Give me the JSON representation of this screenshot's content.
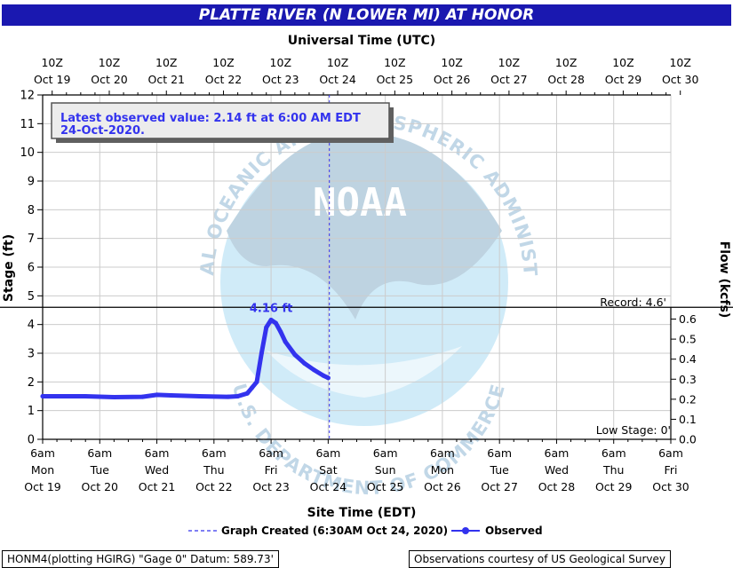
{
  "title": "PLATTE RIVER (N LOWER MI) AT HONOR",
  "top_axis_title": "Universal Time (UTC)",
  "bottom_axis_title": "Site Time (EDT)",
  "y_left_label": "Stage (ft)",
  "y_right_label": "Flow (kcfs)",
  "callout": {
    "line1": "Latest observed value: 2.14 ft at 6:00 AM EDT",
    "line2": "24-Oct-2020."
  },
  "record_label": "Record: 4.6'",
  "low_stage_label": "Low Stage: 0'",
  "peak_label": "4.16 ft",
  "legend": {
    "created": "Graph Created (6:30AM Oct 24, 2020)",
    "observed": "Observed"
  },
  "footer": {
    "left": "HONM4(plotting HGIRG) \"Gage 0\" Datum: 589.73'",
    "right": "Observations courtesy of US Geological Survey"
  },
  "watermark": {
    "top_text": "NATIONAL OCEANIC AND ATMOSPHERIC ADMINISTRATION",
    "bottom_text": "U.S. DEPARTMENT OF COMMERCE",
    "logo_text": "NOAA"
  },
  "colors": {
    "title_bg": "#1a18b0",
    "series": "#3333ee",
    "callout_text": "#3333ee",
    "grid": "#cccccc",
    "record_line": "#000000"
  },
  "chart_data": {
    "type": "line",
    "title": "PLATTE RIVER (N LOWER MI) AT HONOR",
    "xlabel": "Site Time (EDT)",
    "ylabel": "Stage (ft)",
    "y2label": "Flow (kcfs)",
    "ylim": [
      0,
      12
    ],
    "y2lim": [
      0,
      0.7
    ],
    "xlim": [
      "2020-10-19 06:00",
      "2020-10-30 06:00"
    ],
    "grid": true,
    "top_ticks": [
      {
        "l1": "10Z",
        "l2": "Oct 19"
      },
      {
        "l1": "10Z",
        "l2": "Oct 20"
      },
      {
        "l1": "10Z",
        "l2": "Oct 21"
      },
      {
        "l1": "10Z",
        "l2": "Oct 22"
      },
      {
        "l1": "10Z",
        "l2": "Oct 23"
      },
      {
        "l1": "10Z",
        "l2": "Oct 24"
      },
      {
        "l1": "10Z",
        "l2": "Oct 25"
      },
      {
        "l1": "10Z",
        "l2": "Oct 26"
      },
      {
        "l1": "10Z",
        "l2": "Oct 27"
      },
      {
        "l1": "10Z",
        "l2": "Oct 28"
      },
      {
        "l1": "10Z",
        "l2": "Oct 29"
      },
      {
        "l1": "10Z",
        "l2": "Oct 30"
      }
    ],
    "bottom_ticks": [
      {
        "l1": "6am",
        "l2": "Mon",
        "l3": "Oct 19"
      },
      {
        "l1": "6am",
        "l2": "Tue",
        "l3": "Oct 20"
      },
      {
        "l1": "6am",
        "l2": "Wed",
        "l3": "Oct 21"
      },
      {
        "l1": "6am",
        "l2": "Thu",
        "l3": "Oct 22"
      },
      {
        "l1": "6am",
        "l2": "Fri",
        "l3": "Oct 23"
      },
      {
        "l1": "6am",
        "l2": "Sat",
        "l3": "Oct 24"
      },
      {
        "l1": "6am",
        "l2": "Sun",
        "l3": "Oct 25"
      },
      {
        "l1": "6am",
        "l2": "Mon",
        "l3": "Oct 26"
      },
      {
        "l1": "6am",
        "l2": "Tue",
        "l3": "Oct 27"
      },
      {
        "l1": "6am",
        "l2": "Wed",
        "l3": "Oct 28"
      },
      {
        "l1": "6am",
        "l2": "Thu",
        "l3": "Oct 29"
      },
      {
        "l1": "6am",
        "l2": "Fri",
        "l3": "Oct 30"
      }
    ],
    "y_ticks": [
      0,
      1,
      2,
      3,
      4,
      5,
      6,
      7,
      8,
      9,
      10,
      11,
      12
    ],
    "y2_ticks": [
      "0.0",
      "0.1",
      "0.2",
      "0.3",
      "0.4",
      "0.5",
      "0.6"
    ],
    "record_stage": 4.6,
    "low_stage": 0,
    "now": "2020-10-24 06:30",
    "series": [
      {
        "name": "Observed",
        "x": [
          "2020-10-19 06:00",
          "2020-10-20 00:00",
          "2020-10-20 12:00",
          "2020-10-21 00:00",
          "2020-10-21 06:00",
          "2020-10-21 12:00",
          "2020-10-22 00:00",
          "2020-10-22 12:00",
          "2020-10-22 16:00",
          "2020-10-22 20:00",
          "2020-10-22 22:00",
          "2020-10-23 00:00",
          "2020-10-23 02:00",
          "2020-10-23 04:00",
          "2020-10-23 06:00",
          "2020-10-23 08:00",
          "2020-10-23 10:00",
          "2020-10-23 12:00",
          "2020-10-23 16:00",
          "2020-10-23 20:00",
          "2020-10-24 00:00",
          "2020-10-24 04:00",
          "2020-10-24 06:00"
        ],
        "y": [
          1.5,
          1.5,
          1.47,
          1.48,
          1.55,
          1.53,
          1.5,
          1.48,
          1.5,
          1.6,
          1.8,
          2.0,
          3.0,
          3.9,
          4.16,
          4.05,
          3.75,
          3.4,
          2.95,
          2.65,
          2.42,
          2.22,
          2.14
        ]
      }
    ]
  }
}
